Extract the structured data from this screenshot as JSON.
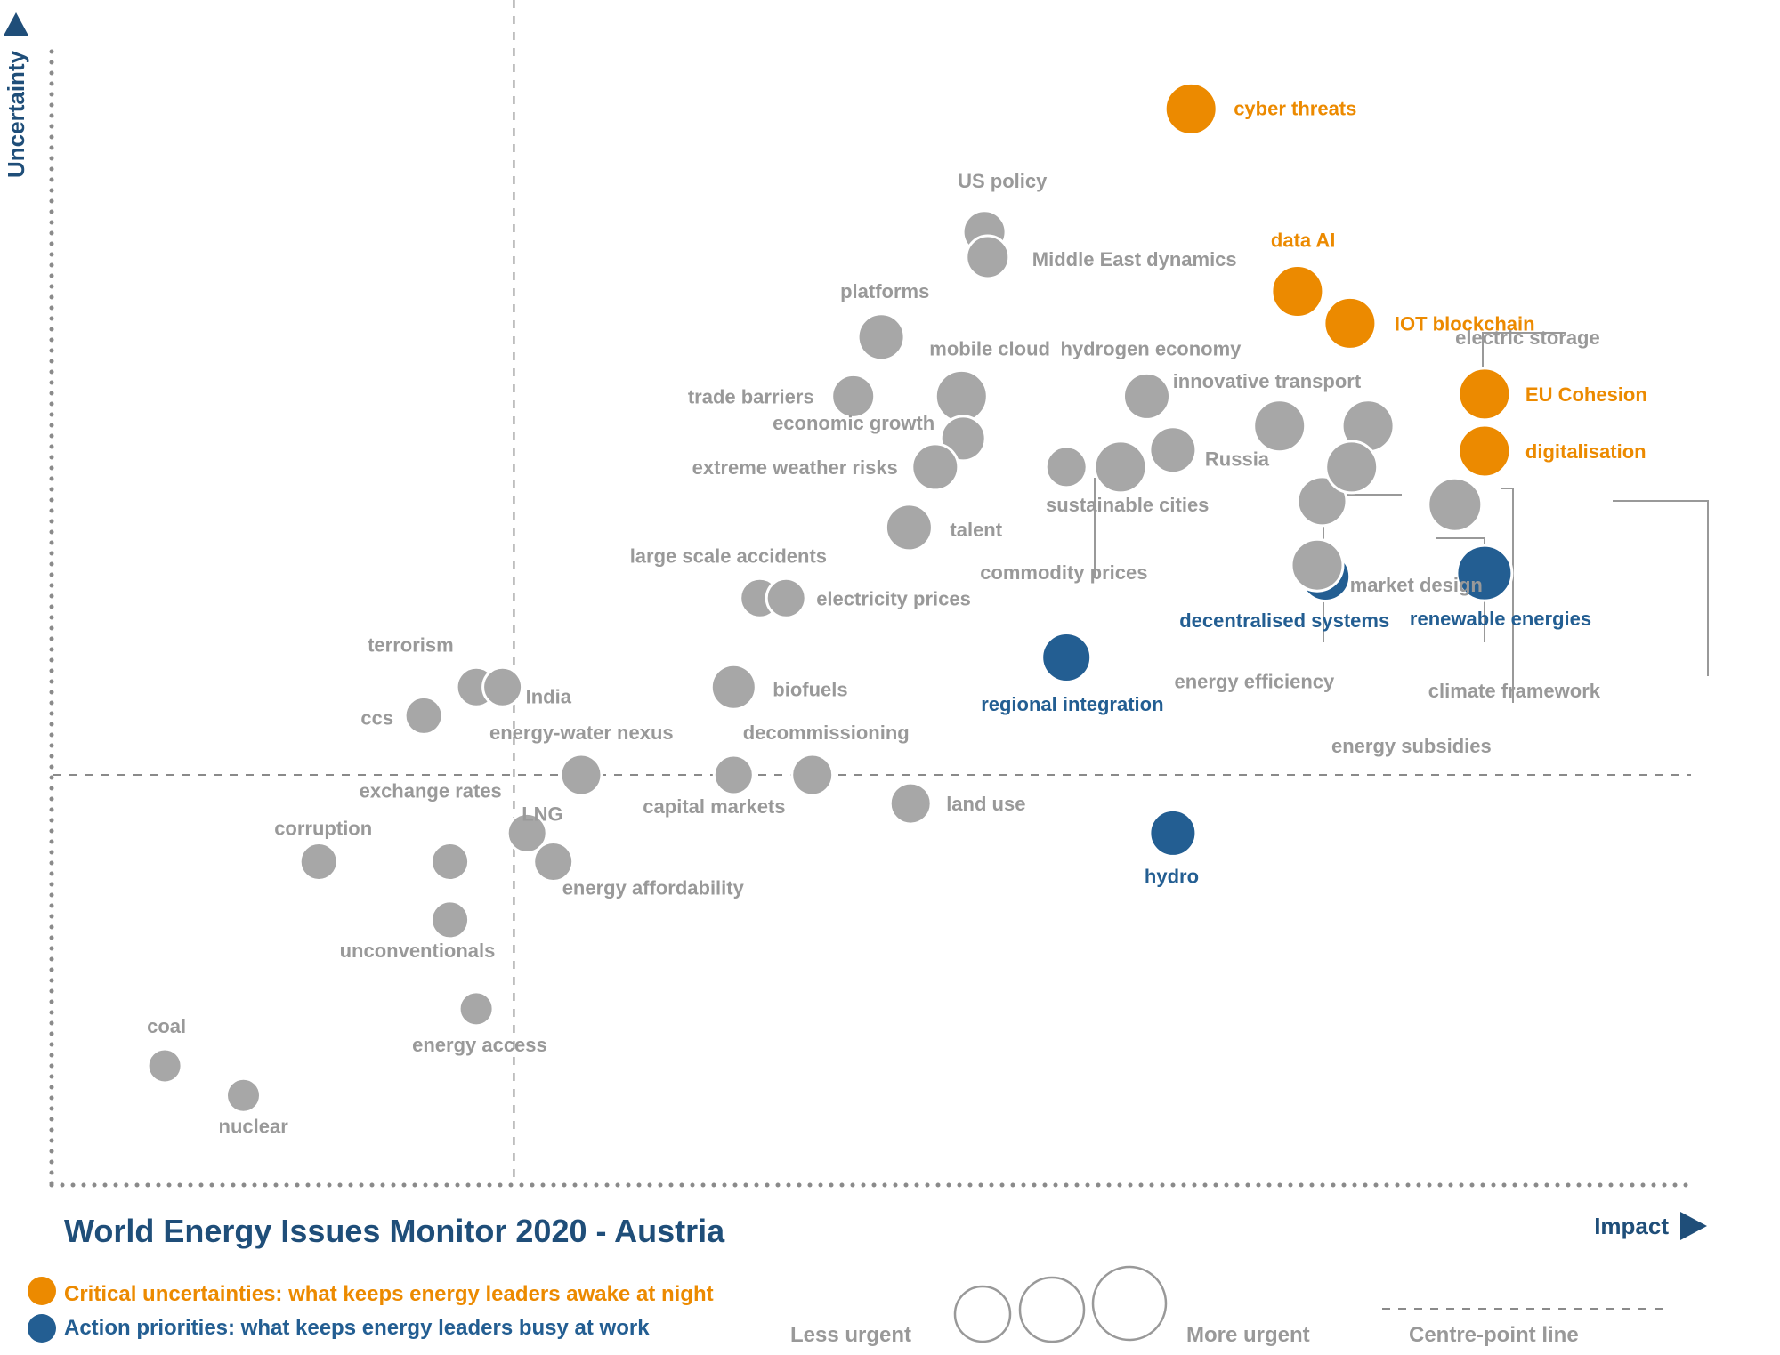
{
  "chart_data": {
    "type": "scatter",
    "title": "World Energy Issues Monitor 2020 - Austria",
    "xlabel": "Impact",
    "ylabel": "Uncertainty",
    "xlim": [
      0,
      1000
    ],
    "ylim": [
      0,
      1000
    ],
    "centre_point": {
      "x": 282,
      "y": 358
    },
    "grid": false,
    "colors": {
      "critical": "#ec8a00",
      "action": "#235e92",
      "other": "#a7a7a7",
      "axis_text": "#1f4e79",
      "muted_text": "#999999"
    },
    "legend": {
      "critical": "Critical uncertainties: what keeps energy leaders awake at night",
      "action": "Action priorities: what keeps energy leaders busy at work",
      "less_urgent": "Less urgent",
      "more_urgent": "More urgent",
      "centre_line": "Centre-point  line"
    },
    "points": [
      {
        "label": "cyber threats",
        "x": 695,
        "y": 942,
        "urgency": 58,
        "group": "critical"
      },
      {
        "label": "data AI",
        "x": 760,
        "y": 782,
        "urgency": 58,
        "group": "critical"
      },
      {
        "label": "IOT blockchain",
        "x": 792,
        "y": 754,
        "urgency": 58,
        "group": "critical"
      },
      {
        "label": "EU Cohesion",
        "x": 874,
        "y": 692,
        "urgency": 58,
        "group": "critical"
      },
      {
        "label": "digitalisation",
        "x": 874,
        "y": 642,
        "urgency": 58,
        "group": "critical"
      },
      {
        "label": "renewable energies",
        "x": 874,
        "y": 535,
        "urgency": 62,
        "group": "action"
      },
      {
        "label": "decentralised systems",
        "x": 777,
        "y": 532,
        "urgency": 55,
        "group": "action"
      },
      {
        "label": "regional integration",
        "x": 619,
        "y": 461,
        "urgency": 55,
        "group": "action"
      },
      {
        "label": "hydro",
        "x": 684,
        "y": 307,
        "urgency": 52,
        "group": "action"
      },
      {
        "label": "US policy",
        "x": 569,
        "y": 834,
        "urgency": 48,
        "group": "other"
      },
      {
        "label": "Middle East dynamics",
        "x": 571,
        "y": 812,
        "urgency": 48,
        "group": "other"
      },
      {
        "label": "platforms",
        "x": 506,
        "y": 742,
        "urgency": 52,
        "group": "other"
      },
      {
        "label": "mobile cloud",
        "x": 555,
        "y": 690,
        "urgency": 58,
        "group": "other"
      },
      {
        "label": "trade barriers",
        "x": 489,
        "y": 690,
        "urgency": 48,
        "group": "other"
      },
      {
        "label": "economic growth",
        "x": 556,
        "y": 653,
        "urgency": 50,
        "group": "other"
      },
      {
        "label": "extreme weather risks",
        "x": 539,
        "y": 628,
        "urgency": 52,
        "group": "other"
      },
      {
        "label": "talent",
        "x": 523,
        "y": 575,
        "urgency": 52,
        "group": "other"
      },
      {
        "label": "hydrogen economy",
        "x": 668,
        "y": 690,
        "urgency": 52,
        "group": "other"
      },
      {
        "label": "Russia",
        "x": 684,
        "y": 643,
        "urgency": 52,
        "group": "other"
      },
      {
        "label": "commodity prices",
        "x": 619,
        "y": 628,
        "urgency": 46,
        "group": "other"
      },
      {
        "label": "sustainable cities",
        "x": 652,
        "y": 628,
        "urgency": 58,
        "group": "other"
      },
      {
        "label": "innovative transport",
        "x": 749,
        "y": 664,
        "urgency": 58,
        "group": "other"
      },
      {
        "label": "electric storage",
        "x": 803,
        "y": 664,
        "urgency": 58,
        "group": "other"
      },
      {
        "label": "energy efficiency",
        "x": 775,
        "y": 598,
        "urgency": 55,
        "group": "other"
      },
      {
        "label": "market design",
        "x": 793,
        "y": 628,
        "urgency": 58,
        "group": "other"
      },
      {
        "label": "energy subsidies",
        "x": 772,
        "y": 542,
        "urgency": 58,
        "group": "other"
      },
      {
        "label": "climate framework",
        "x": 856,
        "y": 595,
        "urgency": 60,
        "group": "other"
      },
      {
        "label": "large scale accidents",
        "x": 432,
        "y": 513,
        "urgency": 44,
        "group": "other"
      },
      {
        "label": "electricity prices",
        "x": 448,
        "y": 513,
        "urgency": 44,
        "group": "other"
      },
      {
        "label": "biofuels",
        "x": 416,
        "y": 435,
        "urgency": 50,
        "group": "other"
      },
      {
        "label": "terrorism",
        "x": 259,
        "y": 435,
        "urgency": 44,
        "group": "other"
      },
      {
        "label": "India",
        "x": 275,
        "y": 435,
        "urgency": 44,
        "group": "other"
      },
      {
        "label": "ccs",
        "x": 227,
        "y": 410,
        "urgency": 42,
        "group": "other"
      },
      {
        "label": "energy-water nexus",
        "x": 323,
        "y": 358,
        "urgency": 46,
        "group": "other"
      },
      {
        "label": "capital markets",
        "x": 416,
        "y": 358,
        "urgency": 44,
        "group": "other"
      },
      {
        "label": "decommissioning",
        "x": 464,
        "y": 358,
        "urgency": 46,
        "group": "other"
      },
      {
        "label": "land use",
        "x": 524,
        "y": 333,
        "urgency": 46,
        "group": "other"
      },
      {
        "label": "LNG",
        "x": 290,
        "y": 307,
        "urgency": 44,
        "group": "other"
      },
      {
        "label": "energy affordability",
        "x": 306,
        "y": 282,
        "urgency": 44,
        "group": "other"
      },
      {
        "label": "exchange rates",
        "x": 243,
        "y": 282,
        "urgency": 42,
        "group": "other"
      },
      {
        "label": "corruption",
        "x": 163,
        "y": 282,
        "urgency": 42,
        "group": "other"
      },
      {
        "label": "unconventionals",
        "x": 243,
        "y": 231,
        "urgency": 42,
        "group": "other"
      },
      {
        "label": "energy access",
        "x": 259,
        "y": 153,
        "urgency": 38,
        "group": "other"
      },
      {
        "label": "coal",
        "x": 69,
        "y": 103,
        "urgency": 38,
        "group": "other"
      },
      {
        "label": "nuclear",
        "x": 117,
        "y": 77,
        "urgency": 38,
        "group": "other"
      }
    ]
  }
}
